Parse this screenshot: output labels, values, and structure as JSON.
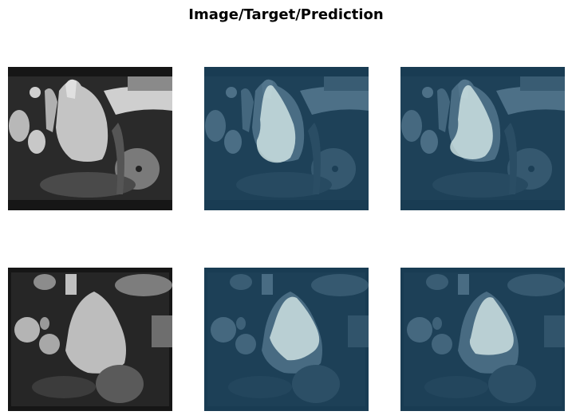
{
  "figure": {
    "title": "Image/Target/Prediction"
  },
  "colors": {
    "background": "#ffffff",
    "scan_frame": "#161616",
    "overlay_tint": "#1b4b6b",
    "mask_fill": "#d9ecea"
  },
  "rows": [
    {
      "panels": [
        {
          "kind": "image"
        },
        {
          "kind": "target"
        },
        {
          "kind": "prediction"
        }
      ]
    },
    {
      "panels": [
        {
          "kind": "image"
        },
        {
          "kind": "target"
        },
        {
          "kind": "prediction"
        }
      ]
    }
  ]
}
